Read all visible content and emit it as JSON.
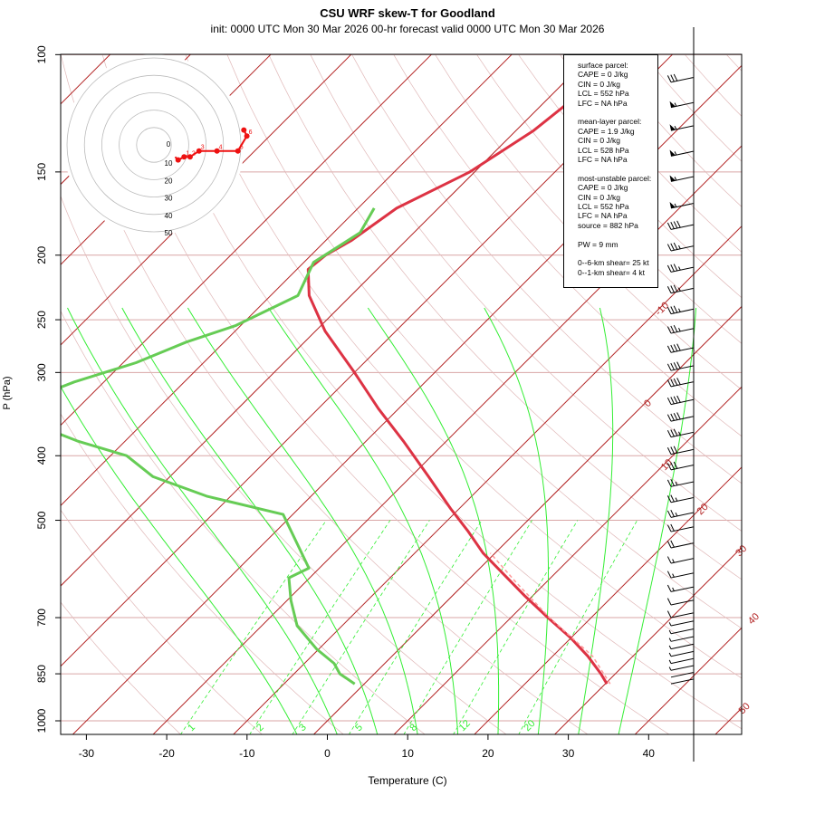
{
  "title": "CSU WRF skew-T for Goodland",
  "subtitle": "init: 0000 UTC Mon 30 Mar 2026     00-hr forecast valid 0000 UTC Mon 30 Mar 2026",
  "colors": {
    "isotherm": "#b22222",
    "isobar": "#d9a6a6",
    "dry_adiabat": "#e0b8b8",
    "moist_adiabat": "#33ee33",
    "mixing_ratio": "#33ee33",
    "temperature": "#dd3344",
    "dewpoint": "#66cc55",
    "hodograph": "#ee1111"
  },
  "indices": {
    "surface": [
      "surface parcel:",
      "CAPE = 0 J/kg",
      "CIN = 0 J/kg",
      "LCL = 552 hPa",
      "LFC = NA hPa"
    ],
    "mixed": [
      "mean-layer parcel:",
      "CAPE = 1.9 J/kg",
      "CIN = 0 J/kg",
      "LCL = 528 hPa",
      "LFC = NA hPa"
    ],
    "unstable": [
      "most-unstable parcel:",
      "CAPE = 0 J/kg",
      "CIN = 0 J/kg",
      "LCL = 552 hPa",
      "LFC = NA hPa",
      "source = 882 hPa"
    ],
    "pw": "PW =  9 mm",
    "shear": [
      "0--6-km shear= 25 kt",
      "0--1-km shear= 4 kt"
    ]
  },
  "chart_data": {
    "type": "line",
    "xlabel": "Temperature (C)",
    "ylabel": "P (hPa)",
    "xlim": [
      -33,
      52
    ],
    "ylim": [
      1050,
      100
    ],
    "y_scale": "log",
    "x_ticks": [
      -30,
      -20,
      -10,
      0,
      10,
      20,
      30,
      40
    ],
    "y_ticks": [
      1000,
      850,
      700,
      500,
      400,
      300,
      250,
      200,
      150,
      100
    ],
    "skew": "isotherms slanted 45 degrees",
    "isotherm_labels": [
      "-10",
      "0",
      "10",
      "20",
      "30",
      "40",
      "50"
    ],
    "mixing_ratio_labels": [
      "1",
      "2",
      "3",
      "5",
      "8",
      "12",
      "20"
    ],
    "series": [
      {
        "name": "temperature",
        "pressure": [
          880,
          850,
          800,
          750,
          700,
          650,
          600,
          560,
          520,
          480,
          430,
          380,
          340,
          300,
          260,
          230,
          210,
          200,
          190,
          170,
          150,
          130,
          110
        ],
        "values": [
          30.2,
          28.2,
          24.4,
          19.9,
          14.6,
          9.1,
          3.4,
          -1.5,
          -6.0,
          -11.1,
          -17.8,
          -25.4,
          -32.5,
          -40.0,
          -48.8,
          -55.2,
          -58.6,
          -58.2,
          -56.8,
          -55.2,
          -50.6,
          -47.8,
          -46.3
        ]
      },
      {
        "name": "dewpoint",
        "pressure": [
          880,
          850,
          820,
          780,
          720,
          660,
          610,
          590,
          490,
          460,
          430,
          400,
          380,
          355,
          330,
          310,
          290,
          270,
          255,
          230,
          205,
          185,
          170
        ],
        "values": [
          -1.2,
          -4.3,
          -6.3,
          -10.3,
          -15.6,
          -19.5,
          -22.6,
          -21.3,
          -31.2,
          -43.0,
          -52.1,
          -58.0,
          -66.0,
          -74.7,
          -77.3,
          -73.7,
          -68.4,
          -64.7,
          -60.6,
          -56.6,
          -58.8,
          -56.7,
          -58.0
        ]
      },
      {
        "name": "parcel",
        "pressure": [
          880,
          800,
          700,
          620,
          560
        ],
        "values": [
          30.6,
          25.0,
          14.8,
          6.3,
          -0.6
        ]
      }
    ],
    "wind_barbs": [
      {
        "p": 880,
        "speed": 4
      },
      {
        "p": 860,
        "speed": 4
      },
      {
        "p": 840,
        "speed": 5
      },
      {
        "p": 820,
        "speed": 5
      },
      {
        "p": 800,
        "speed": 6
      },
      {
        "p": 780,
        "speed": 6
      },
      {
        "p": 760,
        "speed": 7
      },
      {
        "p": 740,
        "speed": 8
      },
      {
        "p": 720,
        "speed": 9
      },
      {
        "p": 700,
        "speed": 10
      },
      {
        "p": 670,
        "speed": 10
      },
      {
        "p": 640,
        "speed": 15
      },
      {
        "p": 610,
        "speed": 15
      },
      {
        "p": 580,
        "speed": 15
      },
      {
        "p": 550,
        "speed": 20
      },
      {
        "p": 520,
        "speed": 20
      },
      {
        "p": 495,
        "speed": 25
      },
      {
        "p": 470,
        "speed": 25
      },
      {
        "p": 445,
        "speed": 25
      },
      {
        "p": 420,
        "speed": 30
      },
      {
        "p": 398,
        "speed": 30
      },
      {
        "p": 375,
        "speed": 35
      },
      {
        "p": 355,
        "speed": 40
      },
      {
        "p": 335,
        "speed": 40
      },
      {
        "p": 315,
        "speed": 40
      },
      {
        "p": 298,
        "speed": 40
      },
      {
        "p": 280,
        "speed": 40
      },
      {
        "p": 262,
        "speed": 35
      },
      {
        "p": 245,
        "speed": 35
      },
      {
        "p": 228,
        "speed": 35
      },
      {
        "p": 212,
        "speed": 35
      },
      {
        "p": 197,
        "speed": 35
      },
      {
        "p": 183,
        "speed": 40
      },
      {
        "p": 170,
        "speed": 55
      },
      {
        "p": 155,
        "speed": 55
      },
      {
        "p": 142,
        "speed": 55
      },
      {
        "p": 130,
        "speed": 55
      },
      {
        "p": 120,
        "speed": 55
      },
      {
        "p": 110,
        "speed": 30
      }
    ],
    "hodograph": {
      "ring_labels": [
        "0",
        "10",
        "20",
        "30",
        "40",
        "50"
      ],
      "u": [
        -2,
        -1,
        1,
        3,
        6,
        12,
        19,
        22,
        21
      ],
      "v": [
        -1,
        -2,
        -1,
        -1,
        1,
        1,
        1,
        6,
        8
      ],
      "level_labels": [
        "1",
        "2",
        "3",
        "4",
        "5",
        "6"
      ]
    }
  }
}
